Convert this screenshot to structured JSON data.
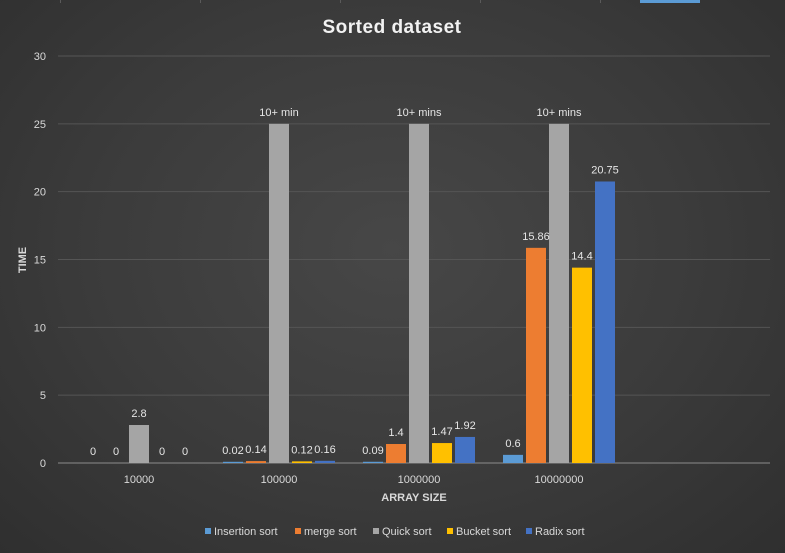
{
  "chart_data": {
    "type": "bar",
    "title": "Sorted dataset",
    "xlabel": "ARRAY SIZE",
    "ylabel": "TIME",
    "ylim": [
      0,
      30
    ],
    "yticks": [
      "0",
      "5",
      "10",
      "15",
      "20",
      "25",
      "30"
    ],
    "categories": [
      "10000",
      "100000",
      "1000000",
      "10000000"
    ],
    "grid": true,
    "legend": "bottom",
    "series": [
      {
        "name": "Insertion sort",
        "color": "#5b9bd5",
        "values": [
          0,
          0.02,
          0.09,
          0.6
        ],
        "labels": [
          "0",
          "0.02",
          "0.09",
          "0.6"
        ]
      },
      {
        "name": "merge sort",
        "color": "#ed7d31",
        "values": [
          0,
          0.14,
          1.4,
          15.86
        ],
        "labels": [
          "0",
          "0.14",
          "1.4",
          "15.86"
        ]
      },
      {
        "name": "Quick sort",
        "color": "#a5a5a5",
        "values": [
          2.8,
          25,
          25,
          25
        ],
        "labels": [
          "2.8",
          "10+ min",
          "10+ mins",
          "10+ mins"
        ]
      },
      {
        "name": "Bucket sort",
        "color": "#ffc000",
        "values": [
          0,
          0.12,
          1.47,
          14.4
        ],
        "labels": [
          "0",
          "0.12",
          "1.47",
          "14.4"
        ]
      },
      {
        "name": "Radix sort",
        "color": "#4472c4",
        "values": [
          0,
          0.16,
          1.92,
          20.75
        ],
        "labels": [
          "0",
          "0.16",
          "1.92",
          "20.75"
        ]
      }
    ]
  }
}
